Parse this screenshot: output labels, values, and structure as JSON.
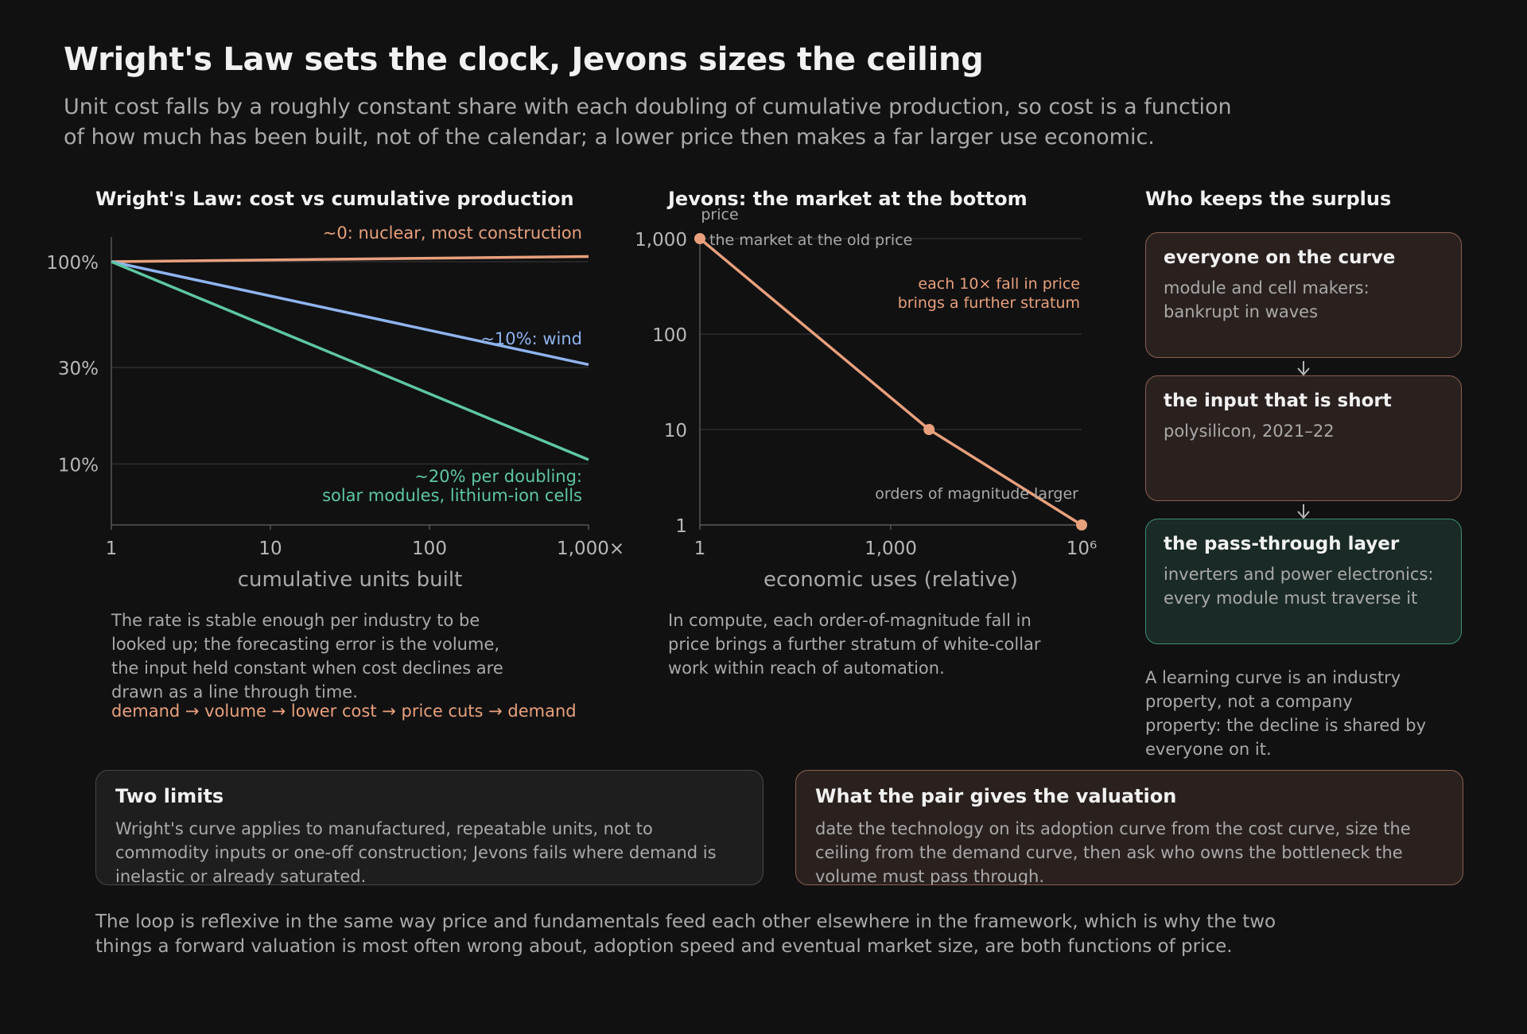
{
  "header": {
    "title": "Wright's Law sets the clock, Jevons sizes the ceiling",
    "subtitle": "Unit cost falls by a roughly constant share with each doubling of cumulative production, so cost is a function of how much has been built, not of the calendar; a lower price then makes a far larger use economic."
  },
  "colors": {
    "background": "#111112",
    "orange": "#e8a07c",
    "blue": "#8fb4ef",
    "green": "#5ec7a2",
    "grid": "#2e2e30",
    "muted_text": "#a9a9a9"
  },
  "chart_data": [
    {
      "type": "line",
      "title": "Wright's Law: cost vs cumulative production",
      "xlabel": "cumulative units built",
      "ylabel": "",
      "x_scale": "log",
      "y_scale": "log",
      "xlim": [
        1,
        1000
      ],
      "ylim": [
        5,
        130
      ],
      "x_ticks": [
        1,
        10,
        100,
        1000
      ],
      "x_tick_labels": [
        "1",
        "10",
        "100",
        "1,000×"
      ],
      "y_ticks": [
        100,
        30,
        10
      ],
      "y_tick_labels": [
        "100%",
        "30%",
        "10%"
      ],
      "grid": true,
      "series": [
        {
          "x": [
            1,
            1000
          ],
          "y": [
            100,
            106
          ],
          "color": "#e8a07c",
          "label": "~0: nuclear, most construction"
        },
        {
          "x": [
            1,
            1000
          ],
          "y": [
            100,
            31
          ],
          "color": "#8fb4ef",
          "label": "~10%: wind"
        },
        {
          "x": [
            1,
            1000
          ],
          "y": [
            100,
            10.5
          ],
          "color": "#5ec7a2",
          "label_lines": [
            "~20% per doubling:",
            "solar modules, lithium-ion cells"
          ]
        }
      ]
    },
    {
      "type": "line",
      "title": "Jevons: the market at the bottom",
      "xlabel": "economic uses (relative)",
      "ylabel": "price",
      "x_scale": "log",
      "y_scale": "log",
      "xlim": [
        1,
        1000000
      ],
      "ylim": [
        1,
        1000
      ],
      "x_ticks": [
        1,
        1000,
        1000000
      ],
      "x_tick_labels": [
        "1",
        "1,000",
        "10⁶"
      ],
      "y_ticks": [
        1000,
        100,
        10,
        1
      ],
      "y_tick_labels": [
        "1,000",
        "100",
        "10",
        "1"
      ],
      "grid": true,
      "series": [
        {
          "x": [
            1,
            4000,
            1000000
          ],
          "y": [
            1000,
            10,
            1
          ],
          "color": "#e8a07c",
          "markers": [
            1,
            4000,
            1000000
          ]
        }
      ],
      "annotations": {
        "top_point": "the market at the old price",
        "middle_lines": [
          "each 10× fall in price",
          "brings a further stratum"
        ],
        "bottom_point": "orders of magnitude larger"
      }
    }
  ],
  "wright_note": {
    "text": "The rate is stable enough per industry to be looked up; the forecasting error is the volume, the input held constant when cost declines are drawn as a line through time.",
    "loop": "demand → volume → lower cost → price cuts → demand"
  },
  "jevons_note": {
    "text": "In compute, each order-of-magnitude fall in price brings a further stratum of white-collar work within reach of automation."
  },
  "surplus": {
    "title": "Who keeps the surplus",
    "boxes": [
      {
        "title": "everyone on the curve",
        "body": "module and cell makers: bankrupt in waves"
      },
      {
        "title": "the input that is short",
        "body": "polysilicon, 2021–22"
      },
      {
        "title": "the pass-through layer",
        "body": "inverters and power electronics: every module must traverse it"
      }
    ],
    "note": "A learning curve is an industry property, not a company property: the decline is shared by everyone on it."
  },
  "limits": {
    "title": "Two limits",
    "body": "Wright's curve applies to manufactured, repeatable units, not to commodity inputs or one-off construction; Jevons fails where demand is inelastic or already saturated."
  },
  "valuation": {
    "title": "What the pair gives the valuation",
    "body": "date the technology on its adoption curve from the cost curve, size the ceiling from the demand curve, then ask who owns the bottleneck the volume must pass through."
  },
  "footer": "The loop is reflexive in the same way price and fundamentals feed each other elsewhere in the framework, which is why the two things a forward valuation is most often wrong about, adoption speed and eventual market size, are both functions of price."
}
